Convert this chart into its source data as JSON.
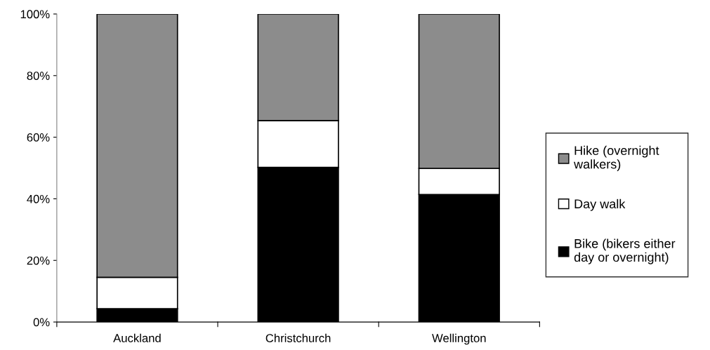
{
  "chart_data": {
    "type": "bar",
    "stacked": true,
    "categories": [
      "Auckland",
      "Christchurch",
      "Wellington"
    ],
    "series": [
      {
        "name": "Bike (bikers either day or overnight)",
        "color": "#000000",
        "values": [
          4.3,
          50.2,
          41.4
        ]
      },
      {
        "name": "Day walk",
        "color": "#ffffff",
        "values": [
          10.2,
          15.2,
          8.5
        ]
      },
      {
        "name": "Hike (overnight walkers)",
        "color": "#8c8c8c",
        "values": [
          85.5,
          34.6,
          50.1
        ]
      }
    ],
    "ylim": [
      0,
      100
    ],
    "yticks": [
      {
        "value": 0,
        "label": "0%"
      },
      {
        "value": 20,
        "label": "20%"
      },
      {
        "value": 40,
        "label": "40%"
      },
      {
        "value": 60,
        "label": "60%"
      },
      {
        "value": 80,
        "label": "80%"
      },
      {
        "value": 100,
        "label": "100%"
      }
    ],
    "grid": false,
    "legend": "right"
  }
}
